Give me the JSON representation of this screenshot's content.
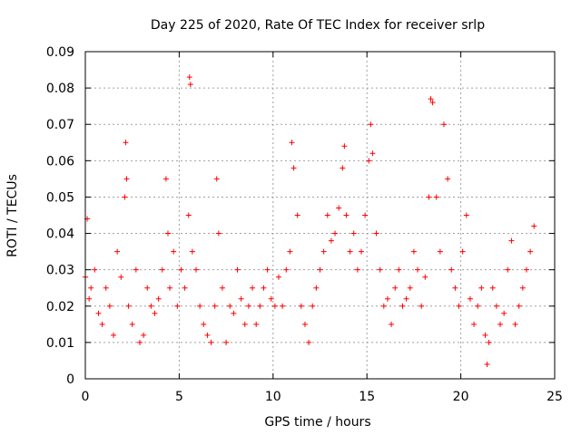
{
  "chart_data": {
    "type": "scatter",
    "title": "Day 225 of 2020, Rate Of TEC Index for receiver srlp",
    "xlabel": "GPS time / hours",
    "ylabel": "ROTI / TECUs",
    "xlim": [
      0,
      25
    ],
    "ylim": [
      0,
      0.09
    ],
    "x_ticks": [
      "0",
      "5",
      "10",
      "15",
      "20",
      "25"
    ],
    "y_ticks": [
      "0",
      "0.01",
      "0.02",
      "0.03",
      "0.04",
      "0.05",
      "0.06",
      "0.07",
      "0.08",
      "0.09"
    ],
    "grid": true,
    "marker": "+",
    "series": [
      {
        "color": "#ff0000",
        "x": [
          0.0,
          0.1,
          0.2,
          0.3,
          0.5,
          0.7,
          0.9,
          1.1,
          1.3,
          1.5,
          1.7,
          1.9,
          2.1,
          2.15,
          2.2,
          2.3,
          2.5,
          2.7,
          2.9,
          3.1,
          3.3,
          3.5,
          3.7,
          3.9,
          4.1,
          4.3,
          4.4,
          4.5,
          4.7,
          4.9,
          5.1,
          5.3,
          5.5,
          5.55,
          5.6,
          5.7,
          5.9,
          6.1,
          6.3,
          6.5,
          6.7,
          6.9,
          7.0,
          7.1,
          7.3,
          7.5,
          7.7,
          7.9,
          8.1,
          8.3,
          8.5,
          8.7,
          8.9,
          9.1,
          9.3,
          9.5,
          9.7,
          9.9,
          10.1,
          10.3,
          10.5,
          10.7,
          10.9,
          11.0,
          11.1,
          11.3,
          11.5,
          11.7,
          11.9,
          12.1,
          12.3,
          12.5,
          12.7,
          12.9,
          13.1,
          13.3,
          13.5,
          13.7,
          13.8,
          13.9,
          14.1,
          14.3,
          14.5,
          14.7,
          14.9,
          15.1,
          15.2,
          15.3,
          15.5,
          15.7,
          15.9,
          16.1,
          16.3,
          16.5,
          16.7,
          16.9,
          17.1,
          17.3,
          17.5,
          17.7,
          17.9,
          18.1,
          18.3,
          18.4,
          18.5,
          18.7,
          18.9,
          19.1,
          19.3,
          19.5,
          19.7,
          19.9,
          20.1,
          20.3,
          20.5,
          20.7,
          20.9,
          21.1,
          21.3,
          21.4,
          21.5,
          21.7,
          21.9,
          22.1,
          22.3,
          22.5,
          22.7,
          22.9,
          23.1,
          23.3,
          23.5,
          23.7,
          23.9
        ],
        "y": [
          0.028,
          0.044,
          0.022,
          0.025,
          0.03,
          0.018,
          0.015,
          0.025,
          0.02,
          0.012,
          0.035,
          0.028,
          0.05,
          0.065,
          0.055,
          0.02,
          0.015,
          0.03,
          0.01,
          0.012,
          0.025,
          0.02,
          0.018,
          0.022,
          0.03,
          0.055,
          0.04,
          0.025,
          0.035,
          0.02,
          0.03,
          0.025,
          0.045,
          0.083,
          0.081,
          0.035,
          0.03,
          0.02,
          0.015,
          0.012,
          0.01,
          0.02,
          0.055,
          0.04,
          0.025,
          0.01,
          0.02,
          0.018,
          0.03,
          0.022,
          0.015,
          0.02,
          0.025,
          0.015,
          0.02,
          0.025,
          0.03,
          0.022,
          0.02,
          0.028,
          0.02,
          0.03,
          0.035,
          0.065,
          0.058,
          0.045,
          0.02,
          0.015,
          0.01,
          0.02,
          0.025,
          0.03,
          0.035,
          0.045,
          0.038,
          0.04,
          0.047,
          0.058,
          0.064,
          0.045,
          0.035,
          0.04,
          0.03,
          0.035,
          0.045,
          0.06,
          0.07,
          0.062,
          0.04,
          0.03,
          0.02,
          0.022,
          0.015,
          0.025,
          0.03,
          0.02,
          0.022,
          0.025,
          0.035,
          0.03,
          0.02,
          0.028,
          0.05,
          0.077,
          0.076,
          0.05,
          0.035,
          0.07,
          0.055,
          0.03,
          0.025,
          0.02,
          0.035,
          0.045,
          0.022,
          0.015,
          0.02,
          0.025,
          0.012,
          0.004,
          0.01,
          0.025,
          0.02,
          0.015,
          0.018,
          0.03,
          0.038,
          0.015,
          0.02,
          0.025,
          0.03,
          0.035,
          0.042
        ]
      }
    ]
  }
}
